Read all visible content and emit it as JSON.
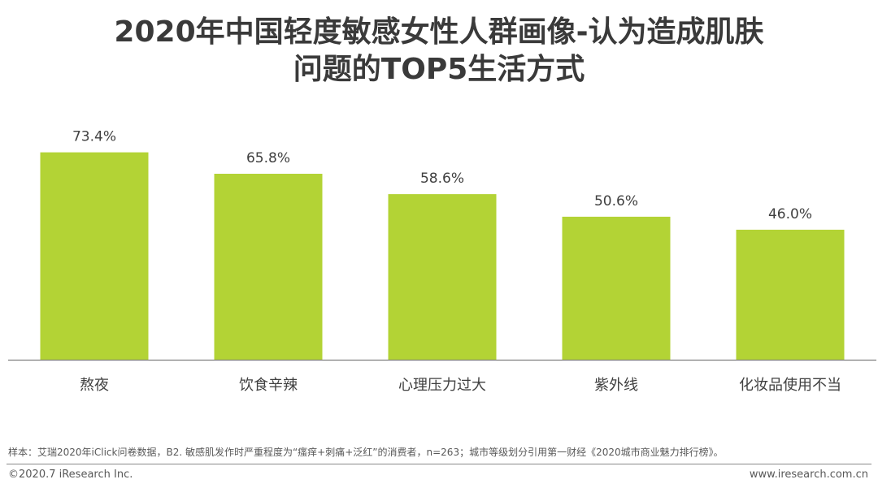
{
  "header": {
    "title_line1": "2020年中国轻度敏感女性人群画像-认为造成肌肤",
    "title_line2": "问题的TOP5生活方式"
  },
  "chart_data": {
    "type": "bar",
    "categories": [
      "熬夜",
      "饮食辛辣",
      "心理压力过大",
      "紫外线",
      "化妆品使用不当"
    ],
    "values": [
      73.4,
      65.8,
      58.6,
      50.6,
      46.0
    ],
    "value_labels": [
      "73.4%",
      "65.8%",
      "58.6%",
      "50.6%",
      "46.0%"
    ],
    "unit": "%",
    "ylim": [
      0,
      100
    ],
    "grid": false,
    "legend": "none",
    "bar_color": "#b3d335",
    "axis_color": "#7f7f7f"
  },
  "footer": {
    "note": "样本：艾瑞2020年iClick问卷数据，B2. 敏感肌发作时严重程度为“瘙痒+刺痛+泛红”的消费者，n=263；城市等级划分引用第一财经《2020城市商业魅力排行榜》。",
    "copyright": "©2020.7 iResearch Inc.",
    "website": "www.iresearch.com.cn"
  }
}
